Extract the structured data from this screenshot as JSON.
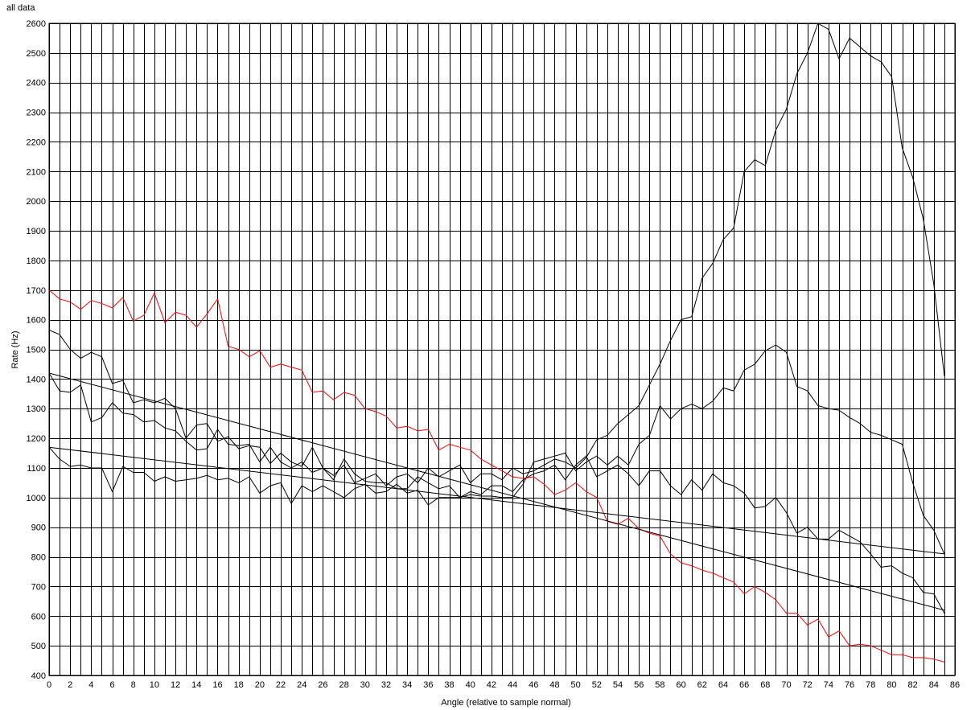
{
  "chart_data": {
    "type": "line",
    "title": "all data",
    "xlabel": "Angle (relative to sample normal)",
    "ylabel": "Rate (Hz)",
    "xlim": [
      0,
      86
    ],
    "ylim": [
      400,
      2600
    ],
    "x_ticks": [
      0,
      2,
      4,
      6,
      8,
      10,
      12,
      14,
      16,
      18,
      20,
      22,
      24,
      26,
      28,
      30,
      32,
      34,
      36,
      38,
      40,
      42,
      44,
      46,
      48,
      50,
      52,
      54,
      56,
      58,
      60,
      62,
      64,
      66,
      68,
      70,
      72,
      74,
      76,
      78,
      80,
      82,
      84,
      86
    ],
    "y_ticks": [
      400,
      500,
      600,
      700,
      800,
      900,
      1000,
      1100,
      1200,
      1300,
      1400,
      1500,
      1600,
      1700,
      1800,
      1900,
      2000,
      2100,
      2200,
      2300,
      2400,
      2500,
      2600
    ],
    "grid": true,
    "series": [
      {
        "color": "#000000",
        "x": [
          0,
          1,
          2,
          3,
          4,
          5,
          6,
          7,
          8,
          9,
          10,
          11,
          12,
          13,
          14,
          15,
          16,
          17,
          18,
          19,
          20,
          21,
          22,
          23,
          24,
          25,
          26,
          27,
          28,
          29,
          30,
          31,
          32,
          33,
          34,
          35,
          36,
          37,
          38,
          39,
          40,
          41,
          42,
          43,
          44,
          45,
          46,
          47,
          48,
          49,
          50,
          51,
          52,
          53,
          54,
          55,
          56,
          57,
          58,
          59,
          60,
          61,
          62,
          63,
          64,
          65,
          66,
          67,
          68,
          69,
          70,
          71,
          72,
          73,
          74,
          75,
          76,
          77,
          78,
          79,
          80,
          81,
          82,
          83,
          84,
          85
        ],
        "y": [
          1565,
          1550,
          1500,
          1470,
          1490,
          1475,
          1385,
          1395,
          1320,
          1330,
          1320,
          1335,
          1300,
          1200,
          1245,
          1250,
          1190,
          1205,
          1165,
          1175,
          1170,
          1115,
          1150,
          1120,
          1105,
          1170,
          1100,
          1075,
          1110,
          1050,
          1065,
          1080,
          1040,
          1070,
          1080,
          1050,
          1100,
          1070,
          1090,
          1110,
          1050,
          1080,
          1080,
          1060,
          1100,
          1080,
          1090,
          1110,
          1130,
          1120,
          1100,
          1135,
          1195,
          1210,
          1250,
          1280,
          1310,
          1380,
          1450,
          1530,
          1600,
          1610,
          1740,
          1790,
          1870,
          1910,
          2100,
          2140,
          2120,
          2240,
          2310,
          2430,
          2500,
          2600,
          2580,
          2480,
          2550,
          2520,
          2490,
          2470,
          2420,
          2180,
          2080,
          1940,
          1720,
          1410
        ]
      },
      {
        "color": "#000000",
        "x": [
          0,
          1,
          2,
          3,
          4,
          5,
          6,
          7,
          8,
          9,
          10,
          11,
          12,
          13,
          14,
          15,
          16,
          17,
          18,
          19,
          20,
          21,
          22,
          23,
          24,
          25,
          26,
          27,
          28,
          29,
          30,
          31,
          32,
          33,
          34,
          35,
          36,
          37,
          38,
          39,
          40,
          41,
          42,
          43,
          44,
          45,
          46,
          47,
          48,
          49,
          50,
          51,
          52,
          53,
          54,
          55,
          56,
          57,
          58,
          59,
          60,
          61,
          62,
          63,
          64,
          65,
          66,
          67,
          68,
          69,
          70,
          71,
          72,
          73,
          74,
          75,
          76,
          77,
          78,
          79,
          80,
          81,
          82,
          83,
          84,
          85
        ],
        "y": [
          1420,
          1360,
          1355,
          1380,
          1255,
          1270,
          1320,
          1285,
          1280,
          1255,
          1260,
          1235,
          1225,
          1190,
          1160,
          1165,
          1230,
          1180,
          1175,
          1180,
          1120,
          1170,
          1120,
          1100,
          1120,
          1085,
          1100,
          1060,
          1130,
          1080,
          1055,
          1050,
          1050,
          1030,
          1030,
          1070,
          1050,
          1030,
          1040,
          1000,
          1020,
          1010,
          1040,
          1040,
          1020,
          1060,
          1080,
          1090,
          1110,
          1060,
          1110,
          1140,
          1070,
          1090,
          1110,
          1080,
          1040,
          1090,
          1090,
          1040,
          1010,
          1060,
          1025,
          1080,
          1050,
          1040,
          1015,
          965,
          970,
          1000,
          950,
          880,
          900,
          860,
          860,
          890,
          870,
          850,
          810,
          765,
          770,
          745,
          730,
          680,
          675,
          610
        ]
      },
      {
        "color": "#000000",
        "x": [
          0,
          1,
          2,
          3,
          4,
          5,
          6,
          7,
          8,
          9,
          10,
          11,
          12,
          13,
          14,
          15,
          16,
          17,
          18,
          19,
          20,
          21,
          22,
          23,
          24,
          25,
          26,
          27,
          28,
          29,
          30,
          31,
          32,
          33,
          34,
          35,
          36,
          37,
          38,
          39,
          40,
          41,
          42,
          43,
          44,
          45,
          46,
          47,
          48,
          49,
          50,
          51,
          52,
          53,
          54,
          55,
          56,
          57,
          58,
          59,
          60,
          61,
          62,
          63,
          64,
          65,
          66,
          67,
          68,
          69,
          70,
          71,
          72,
          73,
          74,
          75,
          76,
          77,
          78,
          79,
          80,
          81,
          82,
          83,
          84,
          85
        ],
        "y": [
          1170,
          1130,
          1105,
          1110,
          1100,
          1100,
          1020,
          1105,
          1085,
          1085,
          1055,
          1070,
          1055,
          1060,
          1065,
          1075,
          1060,
          1065,
          1050,
          1070,
          1015,
          1040,
          1050,
          980,
          1040,
          1020,
          1040,
          1020,
          1000,
          1030,
          1045,
          1015,
          1020,
          1045,
          1015,
          1025,
          975,
          1000,
          1000,
          1000,
          1010,
          1005,
          1005,
          1000,
          1000,
          1045,
          1120,
          1130,
          1140,
          1150,
          1090,
          1120,
          1140,
          1110,
          1140,
          1110,
          1180,
          1210,
          1310,
          1265,
          1300,
          1315,
          1300,
          1325,
          1370,
          1360,
          1430,
          1450,
          1495,
          1515,
          1490,
          1375,
          1360,
          1310,
          1300,
          1295,
          1270,
          1250,
          1220,
          1210,
          1195,
          1180,
          1050,
          940,
          890,
          810
        ]
      },
      {
        "color": "#ff0000",
        "x": [
          0,
          1,
          2,
          3,
          4,
          5,
          6,
          7,
          8,
          9,
          10,
          11,
          12,
          13,
          14,
          15,
          16,
          17,
          18,
          19,
          20,
          21,
          22,
          23,
          24,
          25,
          26,
          27,
          28,
          29,
          30,
          31,
          32,
          33,
          34,
          35,
          36,
          37,
          38,
          39,
          40,
          41,
          42,
          43,
          44,
          45,
          46,
          47,
          48,
          49,
          50,
          51,
          52,
          53,
          54,
          55,
          56,
          57,
          58,
          59,
          60,
          61,
          62,
          63,
          64,
          65,
          66,
          67,
          68,
          69,
          70,
          71,
          72,
          73,
          74,
          75,
          76,
          77,
          78,
          79,
          80,
          81,
          82,
          83,
          84,
          85
        ],
        "y": [
          1700,
          1670,
          1660,
          1635,
          1665,
          1655,
          1640,
          1675,
          1595,
          1615,
          1690,
          1590,
          1625,
          1615,
          1575,
          1620,
          1670,
          1510,
          1500,
          1475,
          1495,
          1440,
          1450,
          1440,
          1430,
          1355,
          1360,
          1330,
          1355,
          1345,
          1300,
          1290,
          1275,
          1235,
          1240,
          1225,
          1230,
          1160,
          1180,
          1170,
          1160,
          1130,
          1110,
          1090,
          1070,
          1065,
          1070,
          1045,
          1010,
          1025,
          1050,
          1020,
          1000,
          920,
          910,
          930,
          895,
          880,
          870,
          810,
          780,
          770,
          755,
          745,
          730,
          715,
          675,
          700,
          680,
          655,
          610,
          610,
          570,
          590,
          530,
          550,
          500,
          505,
          500,
          485,
          470,
          470,
          460,
          460,
          455,
          445
        ]
      },
      {
        "color": "#000000",
        "x": [
          0,
          85
        ],
        "y": [
          1420,
          620
        ]
      },
      {
        "color": "#000000",
        "x": [
          0,
          85
        ],
        "y": [
          1170,
          810
        ]
      }
    ]
  }
}
